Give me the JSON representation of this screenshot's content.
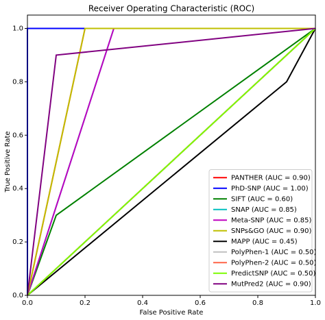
{
  "chart_data": {
    "type": "line",
    "title": "Receiver Operating Characteristic (ROC)",
    "x_label": "False Positive Rate",
    "y_label": "True Positive Rate",
    "xlim": [
      0,
      1
    ],
    "ylim": [
      0,
      1.05
    ],
    "xticks": [
      {
        "value": 0,
        "label": "0.0"
      },
      {
        "value": 0.2,
        "label": "0.2"
      },
      {
        "value": 0.4,
        "label": "0.4"
      },
      {
        "value": 0.6,
        "label": "0.6"
      },
      {
        "value": 0.8,
        "label": "0.8"
      },
      {
        "value": 1,
        "label": "1.0"
      }
    ],
    "yticks": [
      {
        "value": 0,
        "label": "0.0"
      },
      {
        "value": 0.2,
        "label": "0.2"
      },
      {
        "value": 0.4,
        "label": "0.4"
      },
      {
        "value": 0.6,
        "label": "0.6"
      },
      {
        "value": 0.8,
        "label": "0.8"
      },
      {
        "value": 1,
        "label": "1.0"
      }
    ],
    "legend": "lower right",
    "series": [
      {
        "color": "#000000",
        "x": [
          0,
          1
        ],
        "values": [
          0,
          1
        ]
      },
      {
        "name": "PANTHER (AUC = 0.90)",
        "color": "#ff0000",
        "x": [
          0,
          0.2,
          1
        ],
        "values": [
          0,
          1,
          1
        ]
      },
      {
        "name": "PhD-SNP (AUC = 1.00)",
        "color": "#0000ff",
        "x": [
          0,
          0,
          1
        ],
        "values": [
          0,
          1,
          1
        ]
      },
      {
        "name": "SIFT (AUC = 0.60)",
        "color": "#008000",
        "x": [
          0,
          0.1,
          1
        ],
        "values": [
          0,
          0.3,
          1
        ]
      },
      {
        "name": "SNAP (AUC = 0.85)",
        "color": "#00bfbf",
        "x": [
          0,
          0.3,
          1
        ],
        "values": [
          0,
          1,
          1
        ]
      },
      {
        "name": "Meta-SNP (AUC = 0.85)",
        "color": "#bf00bf",
        "x": [
          0,
          0.3,
          1
        ],
        "values": [
          0,
          1,
          1
        ]
      },
      {
        "name": "SNPs&GO (AUC = 0.90)",
        "color": "#bfbf00",
        "x": [
          0,
          0.2,
          1
        ],
        "values": [
          0,
          1,
          1
        ]
      },
      {
        "name": "MAPP (AUC = 0.45)",
        "color": "#000000",
        "x": [
          0,
          0.9,
          1
        ],
        "values": [
          0,
          0.8,
          1
        ]
      },
      {
        "name": "PolyPhen-1 (AUC = 0.50)",
        "color": "#c0c0c0",
        "x": [
          0,
          1
        ],
        "values": [
          0,
          1
        ]
      },
      {
        "name": "PolyPhen-2 (AUC = 0.50)",
        "color": "#ff6347",
        "x": [
          0,
          1
        ],
        "values": [
          0,
          1
        ]
      },
      {
        "name": "PredictSNP (AUC = 0.50)",
        "color": "#7cfc00",
        "x": [
          0,
          1
        ],
        "values": [
          0,
          1
        ]
      },
      {
        "name": "MutPred2 (AUC = 0.90)",
        "color": "#800080",
        "x": [
          0,
          0.1,
          1
        ],
        "values": [
          0,
          0.9,
          1
        ]
      }
    ]
  }
}
